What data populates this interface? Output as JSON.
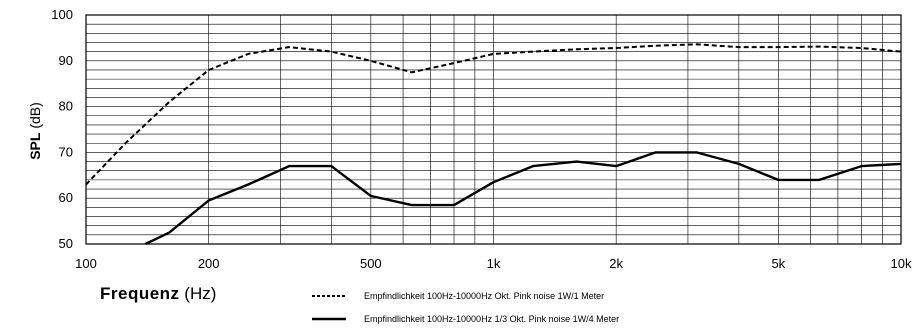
{
  "chart_data": {
    "type": "line",
    "title": "",
    "xlabel_main": "Frequenz",
    "xlabel_unit": "(Hz)",
    "ylabel_main": "SPL",
    "ylabel_unit": "(dB)",
    "xscale": "log",
    "xlim": [
      100,
      10000
    ],
    "ylim": [
      50,
      100
    ],
    "grid": true,
    "x_tick_labels": [
      {
        "value": 100,
        "label": "100"
      },
      {
        "value": 200,
        "label": "200"
      },
      {
        "value": 500,
        "label": "500"
      },
      {
        "value": 1000,
        "label": "1k"
      },
      {
        "value": 2000,
        "label": "2k"
      },
      {
        "value": 5000,
        "label": "5k"
      },
      {
        "value": 10000,
        "label": "10k"
      }
    ],
    "y_tick_labels": [
      {
        "value": 50,
        "label": "50"
      },
      {
        "value": 60,
        "label": "60"
      },
      {
        "value": 70,
        "label": "70"
      },
      {
        "value": 80,
        "label": "80"
      },
      {
        "value": 90,
        "label": "90"
      },
      {
        "value": 100,
        "label": "100"
      }
    ],
    "legend_position": "bottom",
    "series": [
      {
        "name": "Empfindlichkeit 100Hz-10000Hz Okt. Pink noise 1W/1 Meter",
        "style": "dashed",
        "color": "#000000",
        "x": [
          100,
          125,
          160,
          200,
          250,
          315,
          400,
          500,
          630,
          800,
          1000,
          1250,
          1600,
          2000,
          2500,
          3150,
          4000,
          5000,
          6300,
          8000,
          10000
        ],
        "y": [
          63,
          72,
          81,
          88,
          91.5,
          93,
          92,
          90,
          87.5,
          89.5,
          91.5,
          92,
          92.5,
          92.8,
          93.3,
          93.6,
          93,
          93,
          93.1,
          92.8,
          92
        ]
      },
      {
        "name": "Empfindlichkeit 100Hz-10000Hz 1/3 Okt. Pink noise 1W/4 Meter",
        "style": "solid",
        "color": "#000000",
        "x": [
          140,
          160,
          200,
          250,
          315,
          400,
          500,
          630,
          800,
          1000,
          1250,
          1600,
          2000,
          2500,
          3150,
          4000,
          5000,
          6300,
          8000,
          10000
        ],
        "y": [
          50,
          52.5,
          59.5,
          63,
          67,
          67,
          60.5,
          58.5,
          58.5,
          63.5,
          67,
          68,
          67,
          70,
          70,
          67.5,
          64,
          64,
          67,
          67.5
        ]
      }
    ]
  }
}
